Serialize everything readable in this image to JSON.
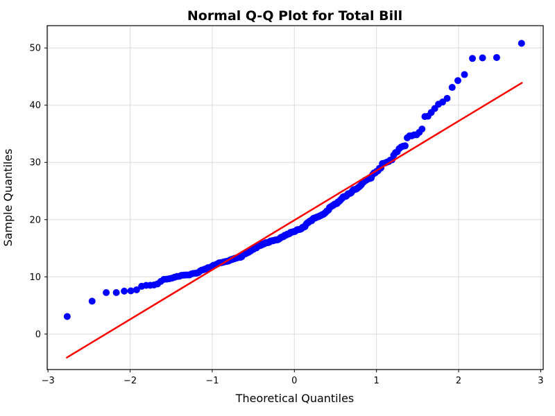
{
  "figure": {
    "background": "#ffffff",
    "title": "Normal Q-Q Plot for Total Bill"
  },
  "chart_data": {
    "type": "scatter",
    "title": "Normal Q-Q Plot for Total Bill",
    "xlabel": "Theoretical Quantiles",
    "ylabel": "Sample Quantiles",
    "xlim": [
      -3.01,
      3.03
    ],
    "ylim": [
      -6.2,
      53.9
    ],
    "xticks": [
      -3,
      -2,
      -1,
      0,
      1,
      2,
      3
    ],
    "yticks": [
      0,
      10,
      20,
      30,
      40,
      50
    ],
    "grid": true,
    "grid_color": "#dcdcdc",
    "spine_color": "#000000",
    "point_color": "#0000ff",
    "point_radius": 5,
    "n_points": 244,
    "quantile_rule": "filliben: p_1=1-0.5^(1/n), p_n=0.5^(1/n), p_i=(i-0.3175)/(n+0.365); x_i=InverseNormalCDF(p_i)",
    "sample_quantiles_sorted": [
      3.07,
      5.75,
      7.25,
      7.25,
      7.51,
      7.56,
      7.74,
      8.35,
      8.51,
      8.52,
      8.58,
      8.77,
      9.2,
      9.55,
      9.6,
      9.68,
      9.78,
      9.94,
      10.07,
      10.09,
      10.27,
      10.29,
      10.33,
      10.33,
      10.34,
      10.51,
      10.59,
      10.63,
      10.65,
      10.77,
      11.02,
      11.17,
      11.24,
      11.35,
      11.38,
      11.59,
      11.61,
      11.69,
      11.87,
      12.02,
      12.03,
      12.16,
      12.26,
      12.43,
      12.46,
      12.48,
      12.54,
      12.6,
      12.66,
      12.69,
      12.74,
      12.76,
      12.9,
      13.0,
      13.03,
      13.13,
      13.16,
      13.27,
      13.28,
      13.37,
      13.39,
      13.42,
      13.42,
      13.51,
      13.81,
      13.94,
      14.0,
      14.07,
      14.15,
      14.26,
      14.31,
      14.48,
      14.52,
      14.73,
      14.78,
      14.83,
      15.01,
      15.04,
      15.06,
      15.36,
      15.38,
      15.42,
      15.48,
      15.53,
      15.69,
      15.69,
      15.77,
      15.81,
      15.95,
      15.98,
      15.98,
      16.0,
      16.04,
      16.21,
      16.27,
      16.29,
      16.31,
      16.32,
      16.4,
      16.43,
      16.45,
      16.47,
      16.49,
      16.58,
      16.66,
      16.82,
      16.93,
      16.97,
      16.99,
      17.07,
      17.26,
      17.29,
      17.31,
      17.46,
      17.47,
      17.51,
      17.59,
      17.78,
      17.81,
      17.82,
      17.89,
      17.92,
      17.92,
      18.04,
      18.15,
      18.24,
      18.26,
      18.28,
      18.29,
      18.35,
      18.43,
      18.64,
      18.69,
      18.71,
      18.78,
      19.08,
      19.31,
      19.44,
      19.49,
      19.65,
      19.77,
      19.81,
      19.82,
      20.08,
      20.23,
      20.27,
      20.29,
      20.37,
      20.45,
      20.49,
      20.53,
      20.65,
      20.69,
      20.76,
      20.9,
      20.92,
      21.01,
      21.16,
      21.3,
      21.5,
      21.58,
      21.7,
      22.12,
      22.23,
      22.3,
      22.42,
      22.49,
      22.67,
      22.75,
      22.76,
      22.82,
      23.1,
      23.17,
      23.33,
      23.55,
      23.68,
      23.95,
      24.01,
      24.06,
      24.08,
      24.27,
      24.52,
      24.55,
      24.59,
      24.71,
      25.0,
      25.21,
      25.28,
      25.29,
      25.4,
      25.56,
      25.71,
      25.89,
      26.1,
      26.41,
      26.59,
      26.86,
      26.88,
      27.05,
      27.18,
      27.2,
      27.28,
      27.85,
      28.15,
      28.17,
      28.44,
      28.55,
      28.97,
      29.03,
      29.8,
      29.85,
      29.93,
      30.06,
      30.14,
      30.4,
      30.46,
      31.27,
      31.71,
      31.85,
      32.4,
      32.68,
      32.83,
      32.9,
      34.3,
      34.63,
      34.65,
      34.81,
      34.83,
      35.26,
      35.83,
      38.01,
      38.07,
      38.73,
      39.42,
      40.17,
      40.55,
      41.19,
      43.11,
      44.3,
      45.35,
      48.17,
      48.27,
      48.33,
      50.81
    ],
    "fit_line": {
      "color": "#ff0000",
      "width": 2.5,
      "x": [
        -2.77,
        2.77
      ],
      "y": [
        -4.1,
        43.9
      ]
    }
  }
}
